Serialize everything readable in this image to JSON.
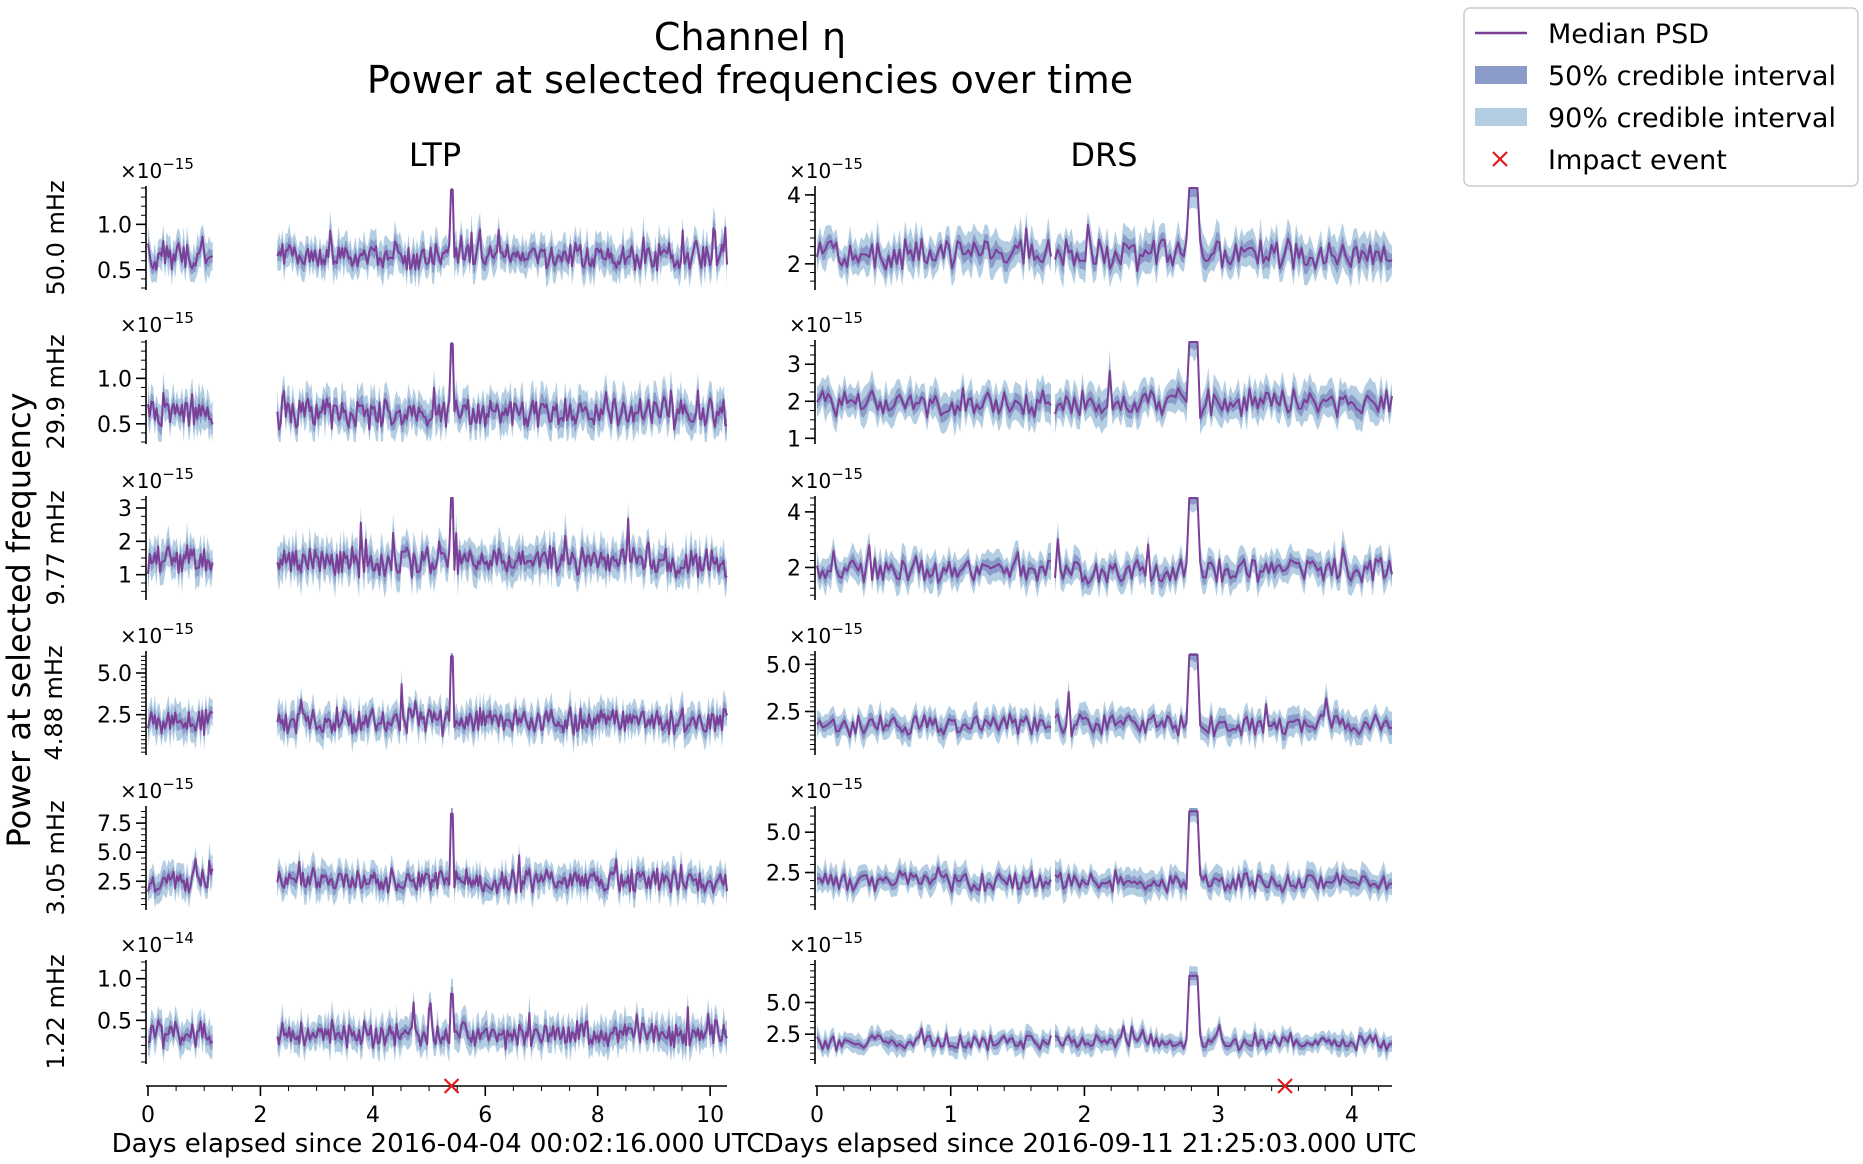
{
  "chart_data": {
    "type": "line",
    "title": "Channel η",
    "subtitle": "Power at selected frequencies over time",
    "ylabel": "Power at selected frequency",
    "legend": {
      "placement": "upper-right-outside",
      "entries": [
        {
          "label": "Median PSD",
          "kind": "line",
          "color": "#7b3f98"
        },
        {
          "label": "50% credible interval",
          "kind": "patch",
          "color": "#8b9bc9"
        },
        {
          "label": "90% credible interval",
          "kind": "patch",
          "color": "#b3cde3"
        },
        {
          "label": "Impact event",
          "kind": "marker",
          "color": "#e41a1c"
        }
      ]
    },
    "colors": {
      "median": "#7b3f98",
      "ci50": "#8b9bc9",
      "ci90": "#b3cde3",
      "impact": "#e41a1c"
    },
    "columns": [
      {
        "name": "LTP",
        "xlabel": "Days elapsed since 2016-04-04 00:02:16.000 UTC",
        "xlim": [
          0,
          10.3
        ],
        "xticks": [
          0,
          2,
          4,
          6,
          8,
          10
        ],
        "segments": [
          [
            0,
            1.15
          ],
          [
            2.3,
            10.3
          ]
        ],
        "impact_day": 5.4
      },
      {
        "name": "DRS",
        "xlabel": "Days elapsed since 2016-09-11 21:25:03.000 UTC",
        "xlim": [
          0,
          4.3
        ],
        "xticks": [
          0,
          1,
          2,
          3,
          4
        ],
        "segments": [
          [
            0,
            1.75
          ],
          [
            1.78,
            4.3
          ]
        ],
        "impact_day": 3.5
      }
    ],
    "rows": [
      {
        "label": "50.0 mHz",
        "panels": [
          {
            "multiplier": "×10<sup>−15</sup>",
            "ylim": [
              0.3,
              1.4
            ],
            "yticks": [
              0.5,
              1.0
            ],
            "ytick_labels": [
              "0.5",
              "1.0"
            ],
            "median": 0.65,
            "spread": 0.12,
            "spikes": [
              {
                "day": 5.4,
                "value": 1.38
              }
            ]
          },
          {
            "multiplier": "×10<sup>−15</sup>",
            "ylim": [
              1.3,
              4.2
            ],
            "yticks": [
              2,
              4
            ],
            "ytick_labels": [
              "2",
              "4"
            ],
            "median": 2.3,
            "spread": 0.35,
            "spikes": [
              {
                "day": 2.8,
                "value": 4.2
              },
              {
                "day": 2.83,
                "value": 4.2
              }
            ]
          }
        ]
      },
      {
        "label": "29.9 mHz",
        "panels": [
          {
            "multiplier": "×10<sup>−15</sup>",
            "ylim": [
              0.3,
              1.4
            ],
            "yticks": [
              0.5,
              1.0
            ],
            "ytick_labels": [
              "0.5",
              "1.0"
            ],
            "median": 0.62,
            "spread": 0.13,
            "spikes": [
              {
                "day": 5.4,
                "value": 1.38
              }
            ]
          },
          {
            "multiplier": "×10<sup>−15</sup>",
            "ylim": [
              0.9,
              3.6
            ],
            "yticks": [
              1,
              2,
              3
            ],
            "ytick_labels": [
              "1",
              "2",
              "3"
            ],
            "median": 1.95,
            "spread": 0.3,
            "spikes": [
              {
                "day": 2.8,
                "value": 3.6
              },
              {
                "day": 2.83,
                "value": 3.6
              }
            ]
          }
        ]
      },
      {
        "label": "9.77 mHz",
        "panels": [
          {
            "multiplier": "×10<sup>−15</sup>",
            "ylim": [
              0.3,
              3.3
            ],
            "yticks": [
              1,
              2,
              3
            ],
            "ytick_labels": [
              "1",
              "2",
              "3"
            ],
            "median": 1.4,
            "spread": 0.35,
            "spikes": [
              {
                "day": 5.4,
                "value": 3.3
              }
            ]
          },
          {
            "multiplier": "×10<sup>−15</sup>",
            "ylim": [
              0.9,
              4.5
            ],
            "yticks": [
              2,
              4
            ],
            "ytick_labels": [
              "2",
              "4"
            ],
            "median": 1.9,
            "spread": 0.35,
            "spikes": [
              {
                "day": 2.8,
                "value": 4.5
              },
              {
                "day": 2.83,
                "value": 4.5
              }
            ]
          }
        ]
      },
      {
        "label": "4.88 mHz",
        "panels": [
          {
            "multiplier": "×10<sup>−15</sup>",
            "ylim": [
              0.2,
              6.2
            ],
            "yticks": [
              2.5,
              5.0
            ],
            "ytick_labels": [
              "2.5",
              "5.0"
            ],
            "median": 2.1,
            "spread": 0.6,
            "spikes": [
              {
                "day": 5.4,
                "value": 6.0
              }
            ]
          },
          {
            "multiplier": "×10<sup>−15</sup>",
            "ylim": [
              0.3,
              5.6
            ],
            "yticks": [
              2.5,
              5.0
            ],
            "ytick_labels": [
              "2.5",
              "5.0"
            ],
            "median": 1.8,
            "spread": 0.45,
            "spikes": [
              {
                "day": 2.8,
                "value": 5.5
              },
              {
                "day": 2.83,
                "value": 5.5
              }
            ]
          }
        ]
      },
      {
        "label": "3.05 mHz",
        "panels": [
          {
            "multiplier": "×10<sup>−15</sup>",
            "ylim": [
              0.2,
              8.8
            ],
            "yticks": [
              2.5,
              5.0,
              7.5
            ],
            "ytick_labels": [
              "2.5",
              "5.0",
              "7.5"
            ],
            "median": 2.5,
            "spread": 0.8,
            "spikes": [
              {
                "day": 5.4,
                "value": 8.3
              }
            ]
          },
          {
            "multiplier": "×10<sup>−15</sup>",
            "ylim": [
              0.3,
              6.5
            ],
            "yticks": [
              2.5,
              5.0
            ],
            "ytick_labels": [
              "2.5",
              "5.0"
            ],
            "median": 1.9,
            "spread": 0.5,
            "spikes": [
              {
                "day": 2.8,
                "value": 6.3
              },
              {
                "day": 2.83,
                "value": 6.3
              }
            ]
          }
        ]
      },
      {
        "label": "1.22 mHz",
        "panels": [
          {
            "multiplier": "×10<sup>−14</sup>",
            "ylim": [
              0.0,
              1.2
            ],
            "yticks": [
              0.5,
              1.0
            ],
            "ytick_labels": [
              "0.5",
              "1.0"
            ],
            "median": 0.33,
            "spread": 0.12,
            "spikes": [
              {
                "day": 5.4,
                "value": 0.82
              }
            ]
          },
          {
            "multiplier": "×10<sup>−15</sup>",
            "ylim": [
              0.3,
              8.2
            ],
            "yticks": [
              2.5,
              5.0
            ],
            "ytick_labels": [
              "2.5",
              "5.0"
            ],
            "median": 1.9,
            "spread": 0.5,
            "spikes": [
              {
                "day": 2.8,
                "value": 7.1
              },
              {
                "day": 2.83,
                "value": 7.1
              }
            ]
          }
        ]
      }
    ]
  }
}
